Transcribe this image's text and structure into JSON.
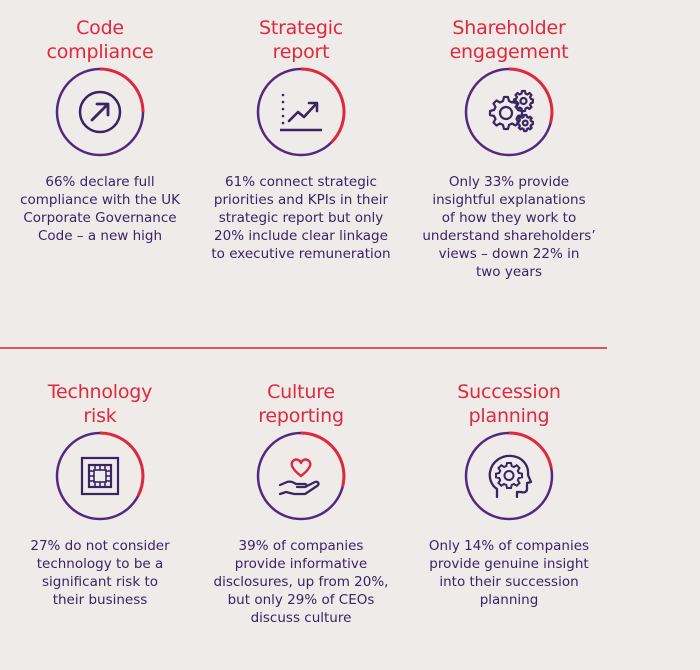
{
  "colors": {
    "accent": "#e0283c",
    "ring": "#53297f",
    "text": "#3a2463",
    "background": "#eeebe9"
  },
  "cards": [
    {
      "title": [
        "Code",
        "compliance"
      ],
      "icon": "arrow-up-right-icon",
      "description": [
        "66% declare full",
        "compliance with the UK",
        "Corporate Governance",
        "Code – a new high"
      ]
    },
    {
      "title": [
        "Strategic",
        "report"
      ],
      "icon": "line-chart-icon",
      "description": [
        "61% connect strategic",
        "priorities and KPIs in their",
        "strategic report but only",
        "20% include clear linkage",
        "to executive remuneration"
      ]
    },
    {
      "title": [
        "Shareholder",
        "engagement"
      ],
      "icon": "gears-icon",
      "description": [
        "Only 33% provide",
        "insightful explanations",
        "of how they work to",
        "understand shareholders’",
        "views – down 22% in",
        "two years"
      ]
    },
    {
      "title": [
        "Technology",
        "risk"
      ],
      "icon": "chip-icon",
      "description": [
        "27% do not consider",
        "technology to be a",
        "significant risk to",
        "their business"
      ]
    },
    {
      "title": [
        "Culture",
        "reporting"
      ],
      "icon": "heart-hand-icon",
      "description": [
        "39% of companies",
        "provide informative",
        "disclosures, up from 20%,",
        "but only 29% of CEOs",
        "discuss culture"
      ]
    },
    {
      "title": [
        "Succession",
        "planning"
      ],
      "icon": "head-gear-icon",
      "description": [
        "Only 14% of companies",
        "provide genuine insight",
        "into their succession",
        "planning"
      ]
    }
  ]
}
